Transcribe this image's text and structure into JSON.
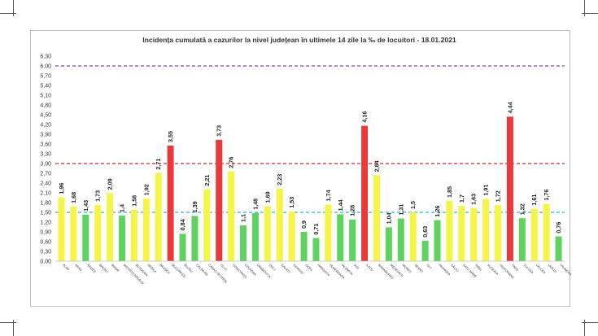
{
  "chart_data": {
    "type": "bar",
    "title": "Incidența cumulată a cazurilor la nivel județean în ultimele 14 zile la ‰ de locuitori - 18.01.2021",
    "xlabel": "",
    "ylabel": "",
    "ylim": [
      0,
      6.3
    ],
    "y_step": 0.3,
    "grid": false,
    "legend": "none",
    "categories": [
      "ALBA",
      "ARAD",
      "ARGEȘ",
      "BACĂU",
      "BIHOR",
      "BISTRIȚA NĂSĂUD",
      "BOTOȘANI",
      "BRĂILA",
      "BRAȘOV",
      "BUCUREȘTI",
      "BUZĂU",
      "CĂLĂRAȘI",
      "CARAȘ-SEVERIN",
      "CLUJ",
      "CONSTANȚA",
      "COVASNA",
      "DÂMBOVIȚA",
      "DOLJ",
      "GALAȚI",
      "GIURGIU",
      "GORJ",
      "HARGHITA",
      "HUNEDOARA",
      "IALOMIȚA",
      "IAȘI",
      "ILFOV",
      "MARAMUREȘ",
      "MEHEDINȚI",
      "MUREȘ",
      "NEAMȚ",
      "OLT",
      "PRAHOVA",
      "SĂLAJ",
      "SATU MARE",
      "SIBIU",
      "SUCEAVA",
      "TELEORMAN",
      "TIMIȘ",
      "TULCEA",
      "VÂLCEA",
      "VASLUI",
      "VRANCEA"
    ],
    "values": [
      1.96,
      1.68,
      1.43,
      1.73,
      2.09,
      1.4,
      1.58,
      1.92,
      2.71,
      3.55,
      0.84,
      1.39,
      2.21,
      3.73,
      2.76,
      1.1,
      1.48,
      1.69,
      2.23,
      1.53,
      0.9,
      0.71,
      1.74,
      1.44,
      1.28,
      4.16,
      2.64,
      1.04,
      1.31,
      1.5,
      0.63,
      1.26,
      1.85,
      1.7,
      1.63,
      1.91,
      1.72,
      4.44,
      1.32,
      1.61,
      1.76,
      0.76
    ],
    "value_labels": [
      "1,96",
      "1,68",
      "1,43",
      "1,73",
      "2,09",
      "1,4",
      "1,58",
      "1,92",
      "2,71",
      "3,55",
      "0,84",
      "1,39",
      "2,21",
      "3,73",
      "2,76",
      "1,1",
      "1,48",
      "1,69",
      "2,23",
      "1,53",
      "0,9",
      "0,71",
      "1,74",
      "1,44",
      "1,28",
      "4,16",
      "2,64",
      "1,04",
      "1,31",
      "1,5",
      "0,63",
      "1,26",
      "1,85",
      "1,7",
      "1,63",
      "1,91",
      "1,72",
      "4,44",
      "1,32",
      "1,61",
      "1,76",
      "0,76"
    ],
    "reference_lines": [
      {
        "value": 1.5,
        "color": "#2cb5e8",
        "style": "dashed"
      },
      {
        "value": 3.0,
        "color": "#e8232a",
        "style": "dashed"
      },
      {
        "value": 6.0,
        "color": "#8e44ad",
        "style": "dashed"
      }
    ],
    "colors": {
      "green": "#5fd35f",
      "yellow": "#f5f547",
      "red": "#e83a3a",
      "axis_text": "#333333"
    },
    "color_rule": "green below 1.5, yellow 1.5 to 3, red above 3"
  }
}
